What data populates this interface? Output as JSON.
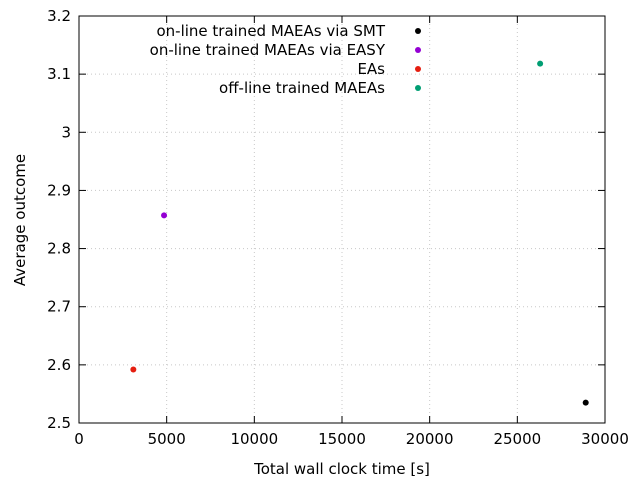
{
  "chart_data": {
    "type": "scatter",
    "title": "",
    "xlabel": "Total wall clock time [s]",
    "ylabel": "Average outcome",
    "xlim": [
      0,
      30000
    ],
    "ylim": [
      2.5,
      3.2
    ],
    "xticks": [
      0,
      5000,
      10000,
      15000,
      20000,
      25000,
      30000
    ],
    "xtick_labels": [
      "0",
      "5000",
      "10000",
      "15000",
      "20000",
      "25000",
      "30000"
    ],
    "yticks": [
      2.5,
      2.6,
      2.7,
      2.8,
      2.9,
      3.0,
      3.1,
      3.2
    ],
    "ytick_labels": [
      "2.5",
      "2.6",
      "2.7",
      "2.8",
      "2.9",
      "3",
      "3.1",
      "3.2"
    ],
    "grid": true,
    "legend_position": "top-right",
    "series": [
      {
        "name": "on-line trained MAEAs via SMT",
        "color": "#000000",
        "points": [
          {
            "x": 28900,
            "y": 2.535
          }
        ]
      },
      {
        "name": "on-line trained MAEAs via EASY",
        "color": "#9400d3",
        "points": [
          {
            "x": 4850,
            "y": 2.857
          }
        ]
      },
      {
        "name": "EAs",
        "color": "#e51e10",
        "points": [
          {
            "x": 3100,
            "y": 2.592
          }
        ]
      },
      {
        "name": "off-line trained MAEAs",
        "color": "#009e73",
        "points": [
          {
            "x": 26300,
            "y": 3.118
          }
        ]
      }
    ]
  }
}
